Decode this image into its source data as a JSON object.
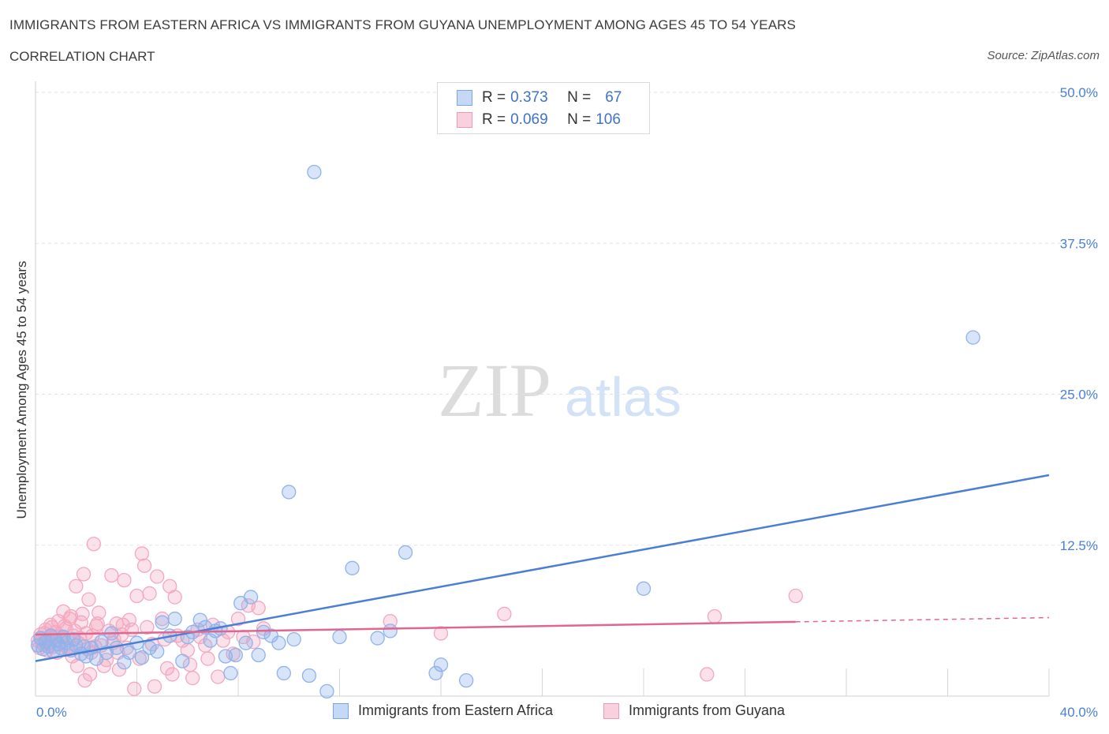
{
  "title": "IMMIGRANTS FROM EASTERN AFRICA VS IMMIGRANTS FROM GUYANA UNEMPLOYMENT AMONG AGES 45 TO 54 YEARS",
  "subtitle": "CORRELATION CHART",
  "source": "Source: ZipAtlas.com",
  "watermark": {
    "zip": "ZIP",
    "atlas": "atlas"
  },
  "legend": {
    "rows": [
      {
        "r_label": "R =",
        "r_value": "0.373",
        "n_label": "N =",
        "n_value": "67",
        "color": "#7aa6e8",
        "fill": "#c5d9f7"
      },
      {
        "r_label": "R =",
        "r_value": "0.069",
        "n_label": "N =",
        "n_value": "106",
        "color": "#ee9ab5",
        "fill": "#f9d0de"
      }
    ]
  },
  "chart_data": {
    "type": "scatter",
    "xlabel": "",
    "ylabel": "Unemployment Among Ages 45 to 54 years",
    "xlim": [
      0,
      40
    ],
    "ylim": [
      0,
      50
    ],
    "x_tick_labels": [
      "0.0%",
      "40.0%"
    ],
    "y_tick_labels": [
      "50.0%",
      "37.5%",
      "25.0%",
      "12.5%"
    ],
    "y_tick_values": [
      50,
      37.5,
      25,
      12.5
    ],
    "series": [
      {
        "name": "Immigrants from Eastern Africa",
        "color": "#4a7fd4",
        "point_color": "#8fb3ea",
        "trend": {
          "x": [
            0,
            40
          ],
          "y": [
            2.9,
            18.3
          ],
          "dashed_from": null
        },
        "points": [
          [
            0.1,
            4.2
          ],
          [
            0.2,
            4.8
          ],
          [
            0.3,
            3.9
          ],
          [
            0.4,
            4.5
          ],
          [
            0.5,
            4.1
          ],
          [
            0.6,
            5.0
          ],
          [
            0.7,
            3.7
          ],
          [
            0.8,
            4.6
          ],
          [
            0.9,
            4.3
          ],
          [
            1.0,
            4.0
          ],
          [
            1.1,
            4.9
          ],
          [
            1.2,
            4.4
          ],
          [
            1.4,
            3.8
          ],
          [
            1.5,
            4.7
          ],
          [
            1.6,
            4.2
          ],
          [
            1.8,
            3.5
          ],
          [
            1.9,
            4.1
          ],
          [
            2.0,
            3.3
          ],
          [
            2.2,
            4.0
          ],
          [
            2.4,
            3.1
          ],
          [
            2.6,
            4.5
          ],
          [
            2.8,
            3.6
          ],
          [
            3.0,
            5.2
          ],
          [
            3.2,
            4.0
          ],
          [
            3.5,
            2.8
          ],
          [
            3.7,
            3.6
          ],
          [
            4.0,
            4.4
          ],
          [
            4.2,
            3.2
          ],
          [
            4.5,
            4.0
          ],
          [
            4.8,
            3.7
          ],
          [
            5.0,
            6.1
          ],
          [
            5.3,
            5.0
          ],
          [
            5.5,
            6.4
          ],
          [
            5.8,
            2.9
          ],
          [
            6.0,
            4.9
          ],
          [
            6.2,
            5.3
          ],
          [
            6.5,
            6.3
          ],
          [
            6.7,
            5.7
          ],
          [
            6.9,
            4.6
          ],
          [
            7.1,
            5.4
          ],
          [
            7.3,
            5.6
          ],
          [
            7.5,
            3.3
          ],
          [
            7.7,
            1.9
          ],
          [
            7.9,
            3.4
          ],
          [
            8.1,
            7.7
          ],
          [
            8.3,
            4.4
          ],
          [
            8.5,
            8.2
          ],
          [
            8.8,
            3.4
          ],
          [
            9.0,
            5.3
          ],
          [
            9.3,
            5.0
          ],
          [
            9.6,
            4.4
          ],
          [
            9.8,
            1.9
          ],
          [
            10.0,
            16.9
          ],
          [
            10.2,
            4.7
          ],
          [
            10.8,
            1.7
          ],
          [
            11.0,
            43.4
          ],
          [
            11.5,
            0.4
          ],
          [
            12.0,
            4.9
          ],
          [
            12.5,
            10.6
          ],
          [
            13.5,
            4.8
          ],
          [
            14.0,
            5.4
          ],
          [
            14.6,
            11.9
          ],
          [
            15.8,
            1.9
          ],
          [
            16.0,
            2.6
          ],
          [
            17.0,
            1.3
          ],
          [
            24.0,
            8.9
          ],
          [
            37.0,
            29.7
          ]
        ]
      },
      {
        "name": "Immigrants from Guyana",
        "color": "#e0668f",
        "point_color": "#f3a8c0",
        "trend": {
          "x": [
            0,
            40
          ],
          "y": [
            5.1,
            6.5
          ],
          "dashed_from": 30.0
        },
        "points": [
          [
            0.1,
            4.6
          ],
          [
            0.2,
            5.1
          ],
          [
            0.3,
            4.3
          ],
          [
            0.4,
            5.5
          ],
          [
            0.5,
            4.8
          ],
          [
            0.6,
            5.9
          ],
          [
            0.7,
            4.1
          ],
          [
            0.8,
            5.3
          ],
          [
            0.9,
            6.2
          ],
          [
            1.0,
            4.9
          ],
          [
            1.1,
            7.0
          ],
          [
            1.2,
            5.6
          ],
          [
            1.3,
            3.9
          ],
          [
            1.4,
            6.6
          ],
          [
            1.5,
            5.0
          ],
          [
            1.6,
            9.1
          ],
          [
            1.7,
            4.4
          ],
          [
            1.8,
            6.1
          ],
          [
            1.9,
            10.1
          ],
          [
            2.0,
            5.2
          ],
          [
            2.1,
            8.0
          ],
          [
            2.2,
            3.6
          ],
          [
            2.3,
            12.6
          ],
          [
            2.4,
            5.8
          ],
          [
            2.5,
            6.9
          ],
          [
            2.6,
            4.2
          ],
          [
            2.7,
            2.5
          ],
          [
            2.8,
            3.0
          ],
          [
            2.9,
            5.4
          ],
          [
            3.0,
            10.0
          ],
          [
            3.1,
            4.7
          ],
          [
            3.2,
            6.0
          ],
          [
            3.3,
            2.2
          ],
          [
            3.4,
            5.1
          ],
          [
            3.5,
            9.6
          ],
          [
            3.6,
            4.0
          ],
          [
            3.7,
            6.3
          ],
          [
            3.8,
            5.5
          ],
          [
            3.9,
            0.6
          ],
          [
            4.0,
            8.3
          ],
          [
            4.1,
            3.1
          ],
          [
            4.2,
            11.8
          ],
          [
            4.3,
            10.8
          ],
          [
            4.4,
            5.7
          ],
          [
            4.5,
            8.5
          ],
          [
            4.6,
            4.3
          ],
          [
            4.7,
            0.8
          ],
          [
            4.8,
            9.9
          ],
          [
            5.0,
            6.4
          ],
          [
            5.1,
            4.7
          ],
          [
            5.2,
            2.3
          ],
          [
            5.3,
            9.1
          ],
          [
            5.4,
            1.8
          ],
          [
            5.5,
            8.2
          ],
          [
            5.6,
            5.0
          ],
          [
            5.8,
            4.6
          ],
          [
            6.0,
            3.8
          ],
          [
            6.1,
            2.6
          ],
          [
            6.2,
            1.5
          ],
          [
            6.4,
            5.5
          ],
          [
            6.5,
            4.9
          ],
          [
            6.7,
            4.2
          ],
          [
            6.8,
            3.1
          ],
          [
            7.0,
            5.9
          ],
          [
            7.2,
            1.6
          ],
          [
            7.4,
            4.6
          ],
          [
            7.6,
            5.3
          ],
          [
            7.8,
            3.5
          ],
          [
            8.0,
            6.4
          ],
          [
            8.2,
            4.9
          ],
          [
            8.4,
            7.5
          ],
          [
            8.6,
            4.5
          ],
          [
            8.8,
            7.3
          ],
          [
            9.0,
            5.6
          ],
          [
            0.15,
            4.0
          ],
          [
            0.25,
            4.7
          ],
          [
            0.35,
            5.2
          ],
          [
            0.45,
            3.8
          ],
          [
            0.55,
            4.4
          ],
          [
            0.65,
            5.7
          ],
          [
            0.75,
            4.9
          ],
          [
            0.85,
            3.6
          ],
          [
            0.95,
            5.0
          ],
          [
            1.05,
            4.5
          ],
          [
            1.15,
            5.8
          ],
          [
            1.25,
            4.0
          ],
          [
            1.35,
            6.4
          ],
          [
            1.45,
            3.3
          ],
          [
            1.55,
            5.4
          ],
          [
            1.65,
            2.5
          ],
          [
            1.75,
            4.8
          ],
          [
            1.85,
            6.8
          ],
          [
            1.95,
            1.3
          ],
          [
            2.05,
            3.9
          ],
          [
            2.15,
            1.8
          ],
          [
            2.25,
            5.0
          ],
          [
            2.35,
            4.1
          ],
          [
            2.45,
            6.0
          ],
          [
            3.05,
            4.4
          ],
          [
            3.25,
            3.6
          ],
          [
            3.45,
            5.9
          ],
          [
            14.0,
            6.2
          ],
          [
            16.0,
            5.2
          ],
          [
            18.5,
            6.8
          ],
          [
            26.5,
            1.8
          ],
          [
            26.8,
            6.6
          ],
          [
            30.0,
            8.3
          ]
        ]
      }
    ]
  },
  "bottom_legend": [
    {
      "label": "Immigrants from Eastern Africa",
      "color": "#7aa6e8",
      "fill": "#c5d9f7"
    },
    {
      "label": "Immigrants from Guyana",
      "color": "#ee9ab5",
      "fill": "#f9d0de"
    }
  ]
}
